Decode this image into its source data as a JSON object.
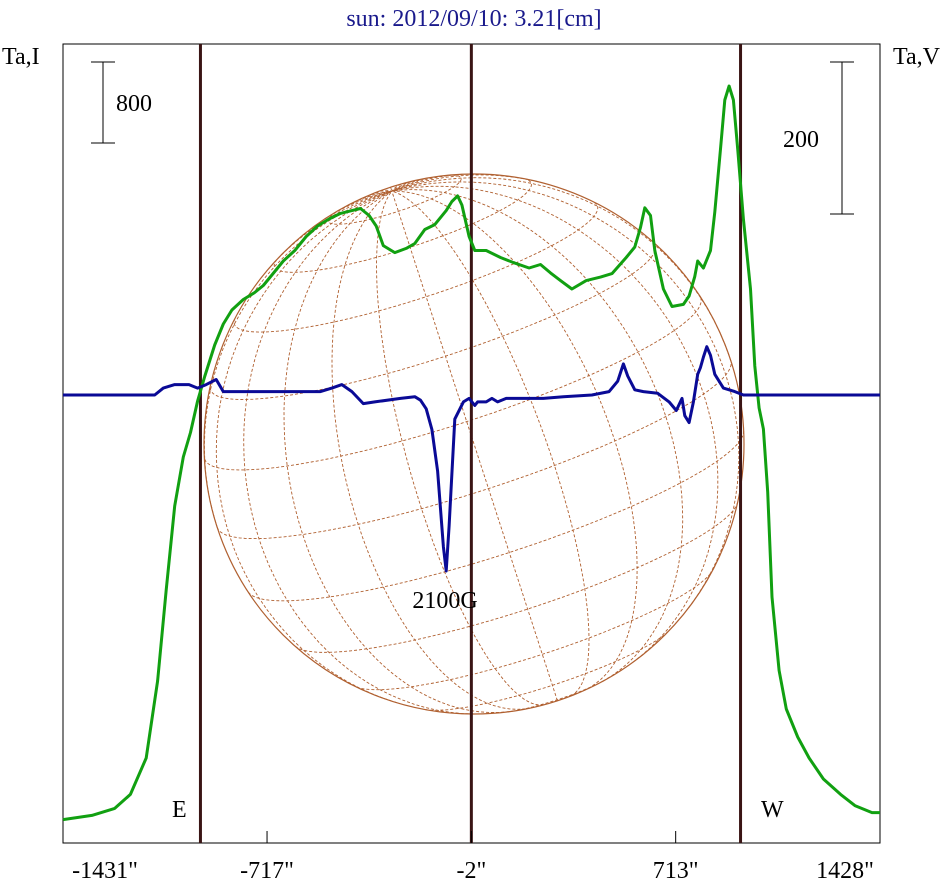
{
  "chart_data": {
    "type": "line",
    "title": "sun: 2012/09/10: 3.21[cm]",
    "left_axis_label": "Ta,I",
    "right_axis_label": "Ta,V",
    "x_ticks": [
      "-1431\"",
      "-717\"",
      "-2\"",
      "713\"",
      "1428\""
    ],
    "x_tick_values": [
      -1431,
      -717,
      -2,
      713,
      1428
    ],
    "xlim": [
      -1431,
      1428
    ],
    "scale_bar_left": "800",
    "scale_bar_right": "200",
    "vertical_markers": [
      -950,
      -2,
      940
    ],
    "edge_labels": {
      "east": "E",
      "west": "W"
    },
    "peak_annotation": "2100G",
    "grid": false,
    "colors": {
      "title": "#1a1a8c",
      "intensity": "#11a011",
      "polarization": "#0a0a96",
      "markers": "#3a1414",
      "disk": "#b06030"
    },
    "series": [
      {
        "key": "intensity",
        "points": [
          [
            -1431,
            2
          ],
          [
            -1330,
            8
          ],
          [
            -1250,
            18
          ],
          [
            -1195,
            38
          ],
          [
            -1140,
            90
          ],
          [
            -1100,
            200
          ],
          [
            -1070,
            330
          ],
          [
            -1040,
            450
          ],
          [
            -1010,
            520
          ],
          [
            -985,
            555
          ],
          [
            -960,
            600
          ],
          [
            -935,
            635
          ],
          [
            -900,
            680
          ],
          [
            -870,
            710
          ],
          [
            -840,
            730
          ],
          [
            -800,
            745
          ],
          [
            -760,
            755
          ],
          [
            -730,
            765
          ],
          [
            -700,
            780
          ],
          [
            -660,
            800
          ],
          [
            -620,
            815
          ],
          [
            -580,
            835
          ],
          [
            -540,
            850
          ],
          [
            -500,
            860
          ],
          [
            -460,
            868
          ],
          [
            -420,
            872
          ],
          [
            -390,
            875
          ],
          [
            -360,
            865
          ],
          [
            -335,
            850
          ],
          [
            -310,
            822
          ],
          [
            -270,
            812
          ],
          [
            -230,
            818
          ],
          [
            -200,
            825
          ],
          [
            -165,
            845
          ],
          [
            -130,
            852
          ],
          [
            -90,
            872
          ],
          [
            -70,
            885
          ],
          [
            -50,
            893
          ],
          [
            -35,
            880
          ],
          [
            -10,
            835
          ],
          [
            10,
            815
          ],
          [
            50,
            815
          ],
          [
            100,
            805
          ],
          [
            150,
            797
          ],
          [
            200,
            790
          ],
          [
            240,
            795
          ],
          [
            275,
            783
          ],
          [
            310,
            772
          ],
          [
            350,
            760
          ],
          [
            400,
            772
          ],
          [
            450,
            777
          ],
          [
            490,
            782
          ],
          [
            540,
            805
          ],
          [
            570,
            820
          ],
          [
            590,
            848
          ],
          [
            605,
            876
          ],
          [
            625,
            865
          ],
          [
            640,
            815
          ],
          [
            670,
            760
          ],
          [
            700,
            735
          ],
          [
            740,
            738
          ],
          [
            760,
            750
          ],
          [
            780,
            778
          ],
          [
            790,
            800
          ],
          [
            800,
            795
          ],
          [
            810,
            790
          ],
          [
            835,
            815
          ],
          [
            850,
            870
          ],
          [
            870,
            960
          ],
          [
            885,
            1030
          ],
          [
            900,
            1050
          ],
          [
            915,
            1030
          ],
          [
            930,
            960
          ],
          [
            950,
            860
          ],
          [
            975,
            760
          ],
          [
            990,
            650
          ],
          [
            1005,
            590
          ],
          [
            1020,
            560
          ],
          [
            1035,
            470
          ],
          [
            1050,
            320
          ],
          [
            1075,
            215
          ],
          [
            1100,
            160
          ],
          [
            1140,
            120
          ],
          [
            1180,
            90
          ],
          [
            1230,
            60
          ],
          [
            1290,
            38
          ],
          [
            1340,
            22
          ],
          [
            1400,
            12
          ],
          [
            1428,
            12
          ]
        ]
      },
      {
        "key": "polarization",
        "points": [
          [
            -1431,
            0
          ],
          [
            -1110,
            0
          ],
          [
            -1080,
            20
          ],
          [
            -1040,
            30
          ],
          [
            -990,
            30
          ],
          [
            -960,
            20
          ],
          [
            -930,
            30
          ],
          [
            -895,
            45
          ],
          [
            -870,
            10
          ],
          [
            -800,
            10
          ],
          [
            -600,
            10
          ],
          [
            -530,
            10
          ],
          [
            -490,
            20
          ],
          [
            -455,
            30
          ],
          [
            -420,
            10
          ],
          [
            -380,
            -25
          ],
          [
            -340,
            -20
          ],
          [
            -250,
            -10
          ],
          [
            -200,
            -5
          ],
          [
            -180,
            -15
          ],
          [
            -160,
            -40
          ],
          [
            -140,
            -100
          ],
          [
            -120,
            -220
          ],
          [
            -100,
            -440
          ],
          [
            -90,
            -510
          ],
          [
            -80,
            -380
          ],
          [
            -60,
            -70
          ],
          [
            -30,
            -20
          ],
          [
            -10,
            -10
          ],
          [
            10,
            -30
          ],
          [
            20,
            -20
          ],
          [
            50,
            -20
          ],
          [
            70,
            -10
          ],
          [
            90,
            -20
          ],
          [
            120,
            -10
          ],
          [
            150,
            -10
          ],
          [
            250,
            -10
          ],
          [
            320,
            -5
          ],
          [
            420,
            0
          ],
          [
            480,
            10
          ],
          [
            510,
            40
          ],
          [
            530,
            90
          ],
          [
            545,
            55
          ],
          [
            570,
            15
          ],
          [
            600,
            10
          ],
          [
            650,
            5
          ],
          [
            690,
            -20
          ],
          [
            715,
            -45
          ],
          [
            735,
            -10
          ],
          [
            745,
            -60
          ],
          [
            760,
            -80
          ],
          [
            775,
            -20
          ],
          [
            790,
            60
          ],
          [
            800,
            80
          ],
          [
            810,
            110
          ],
          [
            822,
            140
          ],
          [
            835,
            115
          ],
          [
            850,
            60
          ],
          [
            880,
            20
          ],
          [
            920,
            10
          ],
          [
            950,
            0
          ],
          [
            1000,
            0
          ],
          [
            1428,
            0
          ]
        ]
      }
    ]
  }
}
